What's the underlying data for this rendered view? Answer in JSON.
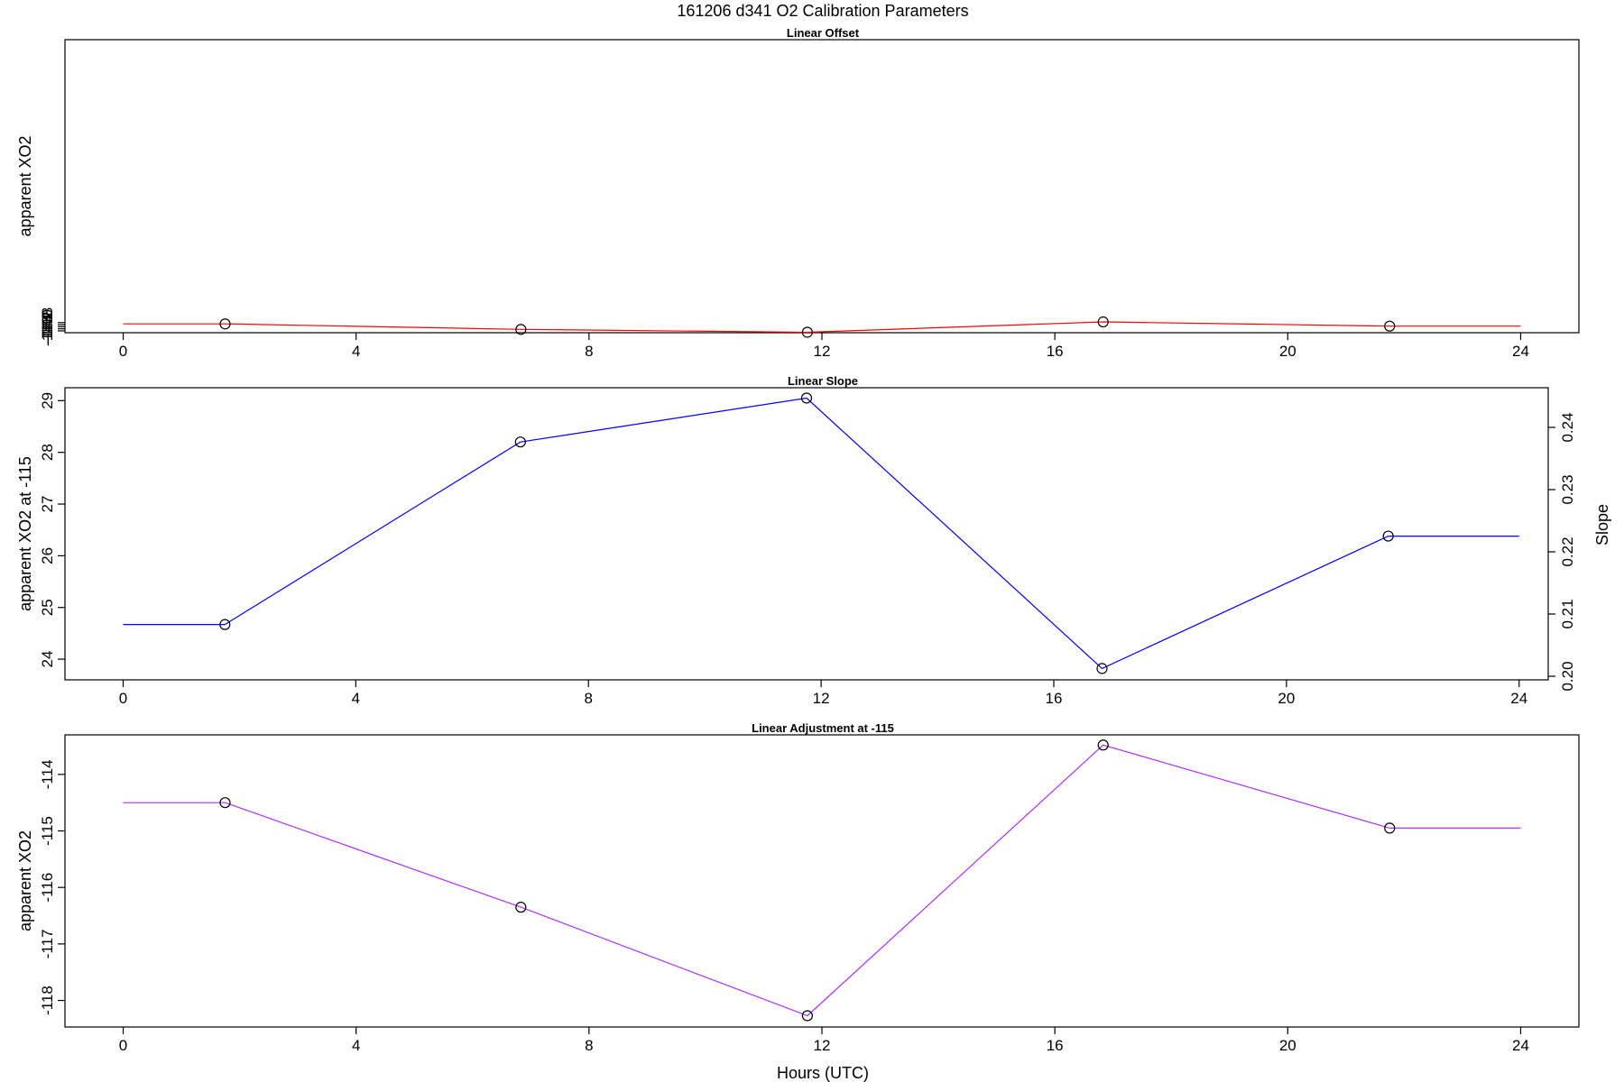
{
  "figure": {
    "title": "161206   d341   O2 Calibration Parameters",
    "xlabel": "Hours (UTC)"
  },
  "chart_data": [
    {
      "type": "line",
      "title": "Linear Offset",
      "xlabel": "",
      "ylabel": "apparent XO2",
      "xlim": [
        -1.0,
        25.0
      ],
      "ylim": [
        -147.8,
        136.8
      ],
      "x_ticks": [
        "0",
        "4",
        "8",
        "12",
        "16",
        "20",
        "24"
      ],
      "y_ticks": [
        "-138",
        "-140",
        "-142",
        "-144",
        "-146"
      ],
      "color": "#ff0000",
      "series": [
        {
          "x": [
            0,
            1.75,
            6.83,
            11.75,
            16.83,
            21.75,
            24
          ],
          "y": [
            -139.25,
            -139.25,
            -144.6,
            -147.35,
            -137.3,
            -141.4,
            -141.4
          ]
        }
      ],
      "markers_x": [
        1.75,
        6.83,
        11.75,
        16.83,
        21.75
      ]
    },
    {
      "type": "line",
      "title": "Linear Slope",
      "xlabel": "",
      "ylabel": "apparent XO2 at -115",
      "ylabel_right": "Slope",
      "xlim": [
        -1.0,
        24.5
      ],
      "ylim": [
        23.6,
        29.25
      ],
      "x_ticks": [
        "0",
        "4",
        "8",
        "12",
        "16",
        "20",
        "24"
      ],
      "y_ticks": [
        "24",
        "25",
        "26",
        "27",
        "28",
        "29"
      ],
      "y_ticks_right": [
        "0.20",
        "0.21",
        "0.22",
        "0.23",
        "0.24"
      ],
      "color": "#0000ff",
      "series": [
        {
          "x": [
            0,
            1.75,
            6.83,
            11.75,
            16.83,
            21.75,
            24
          ],
          "y": [
            24.67,
            24.67,
            28.2,
            29.05,
            23.82,
            26.38,
            26.38
          ]
        }
      ],
      "markers_x": [
        1.75,
        6.83,
        11.75,
        16.83,
        21.75
      ]
    },
    {
      "type": "line",
      "title": "Linear Adjustment at -115",
      "xlabel": "Hours (UTC)",
      "ylabel": "apparent XO2",
      "xlim": [
        -1.0,
        25.0
      ],
      "ylim": [
        -118.47,
        -113.3
      ],
      "x_ticks": [
        "0",
        "4",
        "8",
        "12",
        "16",
        "20",
        "24"
      ],
      "y_ticks": [
        "-114",
        "-115",
        "-116",
        "-117",
        "-118"
      ],
      "color": "#b030ff",
      "series": [
        {
          "x": [
            0,
            1.75,
            6.83,
            11.75,
            16.83,
            21.75,
            24
          ],
          "y": [
            -114.5,
            -114.5,
            -116.35,
            -118.27,
            -113.48,
            -114.95,
            -114.95
          ]
        }
      ],
      "markers_x": [
        1.75,
        6.83,
        11.75,
        16.83,
        21.75
      ]
    }
  ]
}
